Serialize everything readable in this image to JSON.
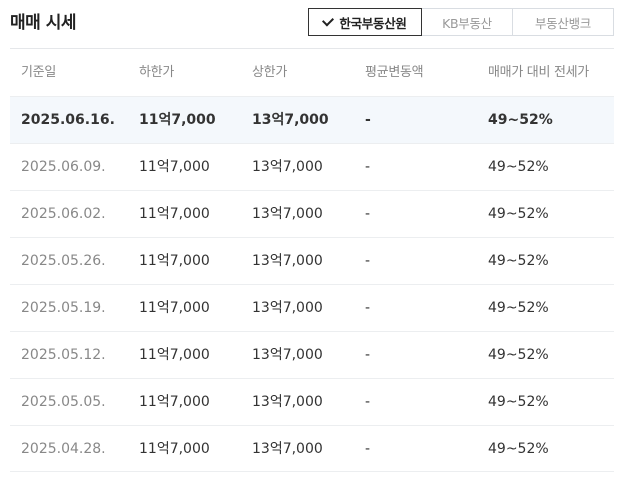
{
  "header": {
    "title": "매매 시세",
    "source_tabs": [
      {
        "label": "한국부동산원",
        "selected": true
      },
      {
        "label": "KB부동산",
        "selected": false
      },
      {
        "label": "부동산뱅크",
        "selected": false
      }
    ]
  },
  "table": {
    "columns": [
      "기준일",
      "하한가",
      "상한가",
      "평균변동액",
      "매매가 대비 전세가"
    ],
    "rows": [
      {
        "date": "2025.06.16.",
        "low": "11억7,000",
        "high": "13억7,000",
        "avg_change": "-",
        "ratio": "49~52%"
      },
      {
        "date": "2025.06.09.",
        "low": "11억7,000",
        "high": "13억7,000",
        "avg_change": "-",
        "ratio": "49~52%"
      },
      {
        "date": "2025.06.02.",
        "low": "11억7,000",
        "high": "13억7,000",
        "avg_change": "-",
        "ratio": "49~52%"
      },
      {
        "date": "2025.05.26.",
        "low": "11억7,000",
        "high": "13억7,000",
        "avg_change": "-",
        "ratio": "49~52%"
      },
      {
        "date": "2025.05.19.",
        "low": "11억7,000",
        "high": "13억7,000",
        "avg_change": "-",
        "ratio": "49~52%"
      },
      {
        "date": "2025.05.12.",
        "low": "11억7,000",
        "high": "13억7,000",
        "avg_change": "-",
        "ratio": "49~52%"
      },
      {
        "date": "2025.05.05.",
        "low": "11억7,000",
        "high": "13억7,000",
        "avg_change": "-",
        "ratio": "49~52%"
      },
      {
        "date": "2025.04.28.",
        "low": "11억7,000",
        "high": "13억7,000",
        "avg_change": "-",
        "ratio": "49~52%"
      }
    ]
  },
  "colors": {
    "highlight_row_bg": "#f4f8fc",
    "selected_tab_border": "#333333",
    "muted_text": "#888888"
  }
}
